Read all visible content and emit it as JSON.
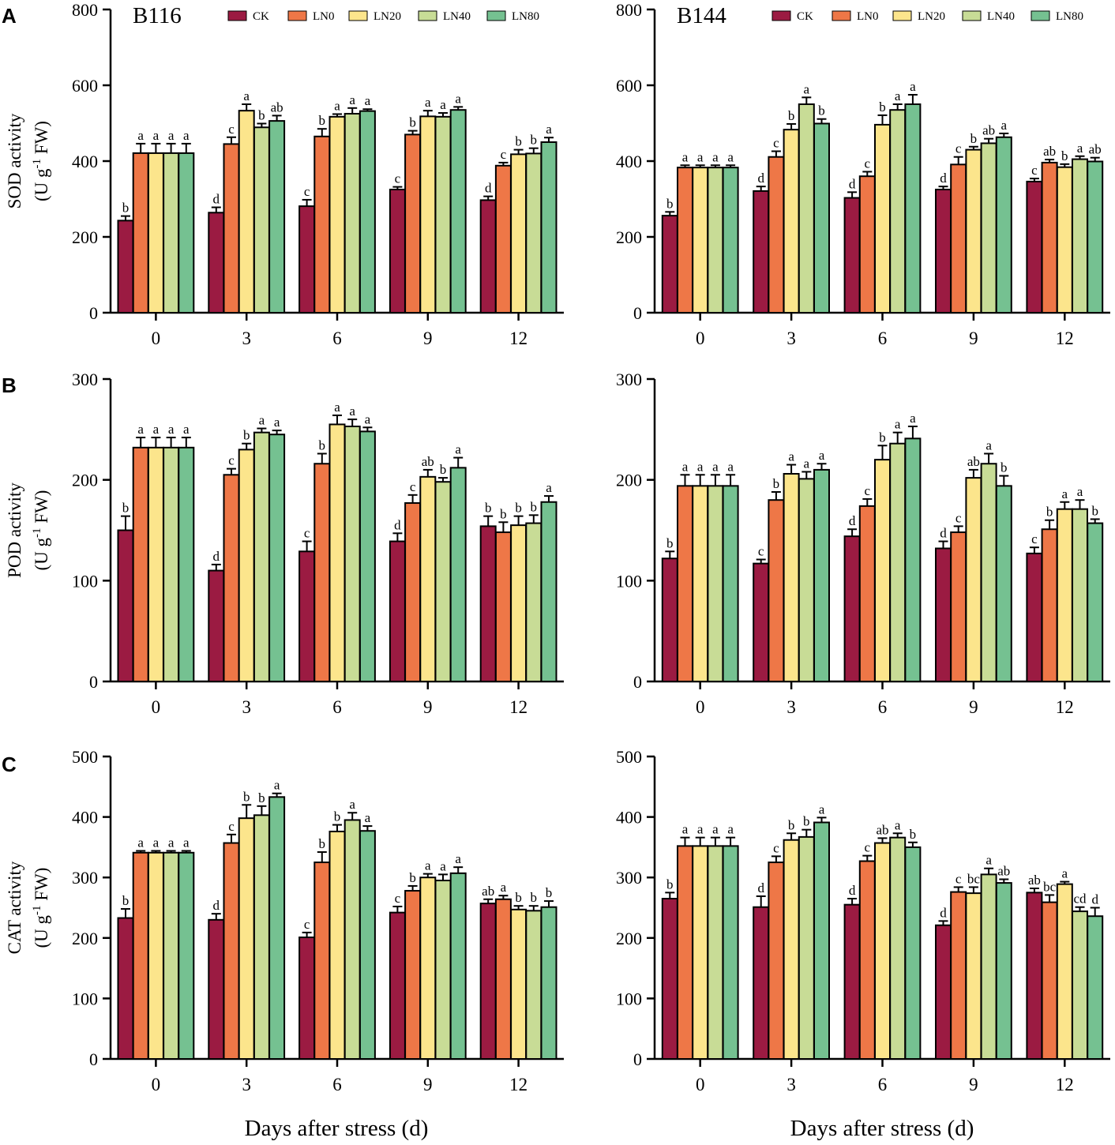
{
  "figure": {
    "xlabel": "Days after stress (d)",
    "panel_letters": [
      "A",
      "B",
      "C"
    ],
    "colors": {
      "CK": "#9b1b42",
      "LN0": "#ee7747",
      "LN20": "#fce58c",
      "LN40": "#c8dc96",
      "LN80": "#75c191"
    }
  },
  "chart_data": [
    {
      "type": "bar",
      "title": "B116",
      "panel": "A",
      "ylabel": "SOD activity (U g-1 FW)",
      "ylim": [
        0,
        800
      ],
      "yticks": [
        0,
        200,
        400,
        600,
        800
      ],
      "categories": [
        "0",
        "3",
        "6",
        "9",
        "12"
      ],
      "legend": "top-right",
      "series": [
        {
          "name": "CK",
          "values": [
            243,
            264,
            281,
            325,
            297
          ],
          "errors": [
            12,
            14,
            17,
            7,
            10
          ],
          "letters": [
            "b",
            "d",
            "c",
            "c",
            "d"
          ]
        },
        {
          "name": "LN0",
          "values": [
            421,
            445,
            465,
            470,
            388
          ],
          "errors": [
            25,
            18,
            20,
            10,
            8
          ],
          "letters": [
            "a",
            "c",
            "b",
            "b",
            "c"
          ]
        },
        {
          "name": "LN20",
          "values": [
            421,
            533,
            517,
            518,
            418
          ],
          "errors": [
            25,
            17,
            7,
            15,
            12
          ],
          "letters": [
            "a",
            "a",
            "a",
            "a",
            "b"
          ]
        },
        {
          "name": "LN40",
          "values": [
            421,
            489,
            525,
            517,
            420
          ],
          "errors": [
            25,
            10,
            15,
            10,
            14
          ],
          "letters": [
            "a",
            "b",
            "a",
            "a",
            "b"
          ]
        },
        {
          "name": "LN80",
          "values": [
            421,
            506,
            532,
            535,
            450
          ],
          "errors": [
            25,
            14,
            5,
            8,
            12
          ],
          "letters": [
            "a",
            "ab",
            "a",
            "a",
            "a"
          ]
        }
      ]
    },
    {
      "type": "bar",
      "title": "B144",
      "panel": "",
      "ylabel": "",
      "ylim": [
        0,
        800
      ],
      "yticks": [
        0,
        200,
        400,
        600,
        800
      ],
      "categories": [
        "0",
        "3",
        "6",
        "9",
        "12"
      ],
      "legend": "top-right",
      "series": [
        {
          "name": "CK",
          "values": [
            256,
            321,
            303,
            325,
            346
          ],
          "errors": [
            10,
            12,
            15,
            8,
            8
          ],
          "letters": [
            "b",
            "d",
            "d",
            "d",
            "c"
          ]
        },
        {
          "name": "LN0",
          "values": [
            383,
            411,
            360,
            391,
            396
          ],
          "errors": [
            6,
            15,
            12,
            20,
            8
          ],
          "letters": [
            "a",
            "c",
            "c",
            "c",
            "ab"
          ]
        },
        {
          "name": "LN20",
          "values": [
            383,
            483,
            496,
            430,
            384
          ],
          "errors": [
            6,
            15,
            25,
            8,
            8
          ],
          "letters": [
            "a",
            "b",
            "b",
            "b",
            "b"
          ]
        },
        {
          "name": "LN40",
          "values": [
            383,
            550,
            535,
            447,
            405
          ],
          "errors": [
            6,
            18,
            15,
            12,
            8
          ],
          "letters": [
            "a",
            "a",
            "a",
            "ab",
            "a"
          ]
        },
        {
          "name": "LN80",
          "values": [
            383,
            499,
            550,
            463,
            399
          ],
          "errors": [
            6,
            12,
            25,
            10,
            10
          ],
          "letters": [
            "a",
            "b",
            "a",
            "a",
            "ab"
          ]
        }
      ]
    },
    {
      "type": "bar",
      "title": "",
      "panel": "B",
      "ylabel": "POD activity (U g-1 FW)",
      "ylim": [
        0,
        300
      ],
      "yticks": [
        0,
        100,
        200,
        300
      ],
      "categories": [
        "0",
        "3",
        "6",
        "9",
        "12"
      ],
      "legend": "none",
      "series": [
        {
          "name": "CK",
          "values": [
            150,
            110,
            129,
            139,
            154
          ],
          "errors": [
            14,
            6,
            10,
            8,
            10
          ],
          "letters": [
            "b",
            "d",
            "c",
            "d",
            "b"
          ]
        },
        {
          "name": "LN0",
          "values": [
            232,
            205,
            216,
            177,
            148
          ],
          "errors": [
            10,
            6,
            10,
            8,
            10
          ],
          "letters": [
            "a",
            "c",
            "b",
            "c",
            "b"
          ]
        },
        {
          "name": "LN20",
          "values": [
            232,
            230,
            255,
            203,
            155
          ],
          "errors": [
            10,
            6,
            9,
            7,
            9
          ],
          "letters": [
            "a",
            "b",
            "a",
            "ab",
            "b"
          ]
        },
        {
          "name": "LN40",
          "values": [
            232,
            247,
            253,
            198,
            157
          ],
          "errors": [
            10,
            4,
            7,
            4,
            8
          ],
          "letters": [
            "a",
            "a",
            "a",
            "b",
            "b"
          ]
        },
        {
          "name": "LN80",
          "values": [
            232,
            245,
            248,
            212,
            178
          ],
          "errors": [
            10,
            4,
            4,
            10,
            6
          ],
          "letters": [
            "a",
            "a",
            "a",
            "a",
            "a"
          ]
        }
      ]
    },
    {
      "type": "bar",
      "title": "",
      "panel": "",
      "ylabel": "",
      "ylim": [
        0,
        300
      ],
      "yticks": [
        0,
        100,
        200,
        300
      ],
      "categories": [
        "0",
        "3",
        "6",
        "9",
        "12"
      ],
      "legend": "none",
      "series": [
        {
          "name": "CK",
          "values": [
            122,
            117,
            144,
            132,
            127
          ],
          "errors": [
            7,
            4,
            7,
            7,
            6
          ],
          "letters": [
            "b",
            "c",
            "d",
            "d",
            "c"
          ]
        },
        {
          "name": "LN0",
          "values": [
            194,
            180,
            174,
            148,
            151
          ],
          "errors": [
            11,
            8,
            7,
            6,
            9
          ],
          "letters": [
            "a",
            "b",
            "c",
            "c",
            "b"
          ]
        },
        {
          "name": "LN20",
          "values": [
            194,
            206,
            220,
            202,
            171
          ],
          "errors": [
            11,
            9,
            14,
            8,
            7
          ],
          "letters": [
            "a",
            "a",
            "b",
            "ab",
            "a"
          ]
        },
        {
          "name": "LN40",
          "values": [
            194,
            201,
            236,
            216,
            171
          ],
          "errors": [
            11,
            7,
            11,
            10,
            9
          ],
          "letters": [
            "a",
            "a",
            "a",
            "a",
            "a"
          ]
        },
        {
          "name": "LN80",
          "values": [
            194,
            210,
            241,
            194,
            157
          ],
          "errors": [
            11,
            6,
            12,
            10,
            4
          ],
          "letters": [
            "a",
            "a",
            "a",
            "b",
            "b"
          ]
        }
      ]
    },
    {
      "type": "bar",
      "title": "",
      "panel": "C",
      "ylabel": "CAT activity (U g-1 FW)",
      "ylim": [
        0,
        500
      ],
      "yticks": [
        0,
        100,
        200,
        300,
        400,
        500
      ],
      "categories": [
        "0",
        "3",
        "6",
        "9",
        "12"
      ],
      "legend": "none",
      "series": [
        {
          "name": "CK",
          "values": [
            233,
            230,
            201,
            242,
            257
          ],
          "errors": [
            15,
            10,
            8,
            10,
            7
          ],
          "letters": [
            "b",
            "d",
            "c",
            "c",
            "ab"
          ]
        },
        {
          "name": "LN0",
          "values": [
            341,
            357,
            325,
            278,
            264
          ],
          "errors": [
            3,
            14,
            17,
            8,
            6
          ],
          "letters": [
            "a",
            "c",
            "b",
            "b",
            "a"
          ]
        },
        {
          "name": "LN20",
          "values": [
            341,
            398,
            376,
            300,
            247
          ],
          "errors": [
            3,
            22,
            11,
            6,
            6
          ],
          "letters": [
            "a",
            "b",
            "b",
            "a",
            "b"
          ]
        },
        {
          "name": "LN40",
          "values": [
            341,
            403,
            395,
            295,
            245
          ],
          "errors": [
            3,
            15,
            12,
            10,
            8
          ],
          "letters": [
            "a",
            "b",
            "a",
            "a",
            "b"
          ]
        },
        {
          "name": "LN80",
          "values": [
            341,
            433,
            377,
            307,
            251
          ],
          "errors": [
            3,
            6,
            8,
            10,
            10
          ],
          "letters": [
            "a",
            "a",
            "a",
            "a",
            "b"
          ]
        }
      ]
    },
    {
      "type": "bar",
      "title": "",
      "panel": "",
      "ylabel": "",
      "ylim": [
        0,
        500
      ],
      "yticks": [
        0,
        100,
        200,
        300,
        400,
        500
      ],
      "categories": [
        "0",
        "3",
        "6",
        "9",
        "12"
      ],
      "legend": "none",
      "series": [
        {
          "name": "CK",
          "values": [
            265,
            251,
            255,
            221,
            275
          ],
          "errors": [
            10,
            18,
            10,
            7,
            7
          ],
          "letters": [
            "b",
            "d",
            "d",
            "d",
            "ab"
          ]
        },
        {
          "name": "LN0",
          "values": [
            352,
            325,
            327,
            276,
            259
          ],
          "errors": [
            14,
            10,
            9,
            8,
            12
          ],
          "letters": [
            "a",
            "c",
            "c",
            "c",
            "bc"
          ]
        },
        {
          "name": "LN20",
          "values": [
            352,
            362,
            357,
            274,
            289
          ],
          "errors": [
            14,
            11,
            8,
            10,
            4
          ],
          "letters": [
            "a",
            "b",
            "ab",
            "bc",
            "a"
          ]
        },
        {
          "name": "LN40",
          "values": [
            352,
            367,
            366,
            305,
            244
          ],
          "errors": [
            14,
            12,
            7,
            10,
            7
          ],
          "letters": [
            "a",
            "b",
            "a",
            "a",
            "cd"
          ]
        },
        {
          "name": "LN80",
          "values": [
            352,
            391,
            350,
            291,
            236
          ],
          "errors": [
            14,
            8,
            8,
            6,
            14
          ],
          "letters": [
            "a",
            "a",
            "b",
            "ab",
            "d"
          ]
        }
      ]
    }
  ]
}
